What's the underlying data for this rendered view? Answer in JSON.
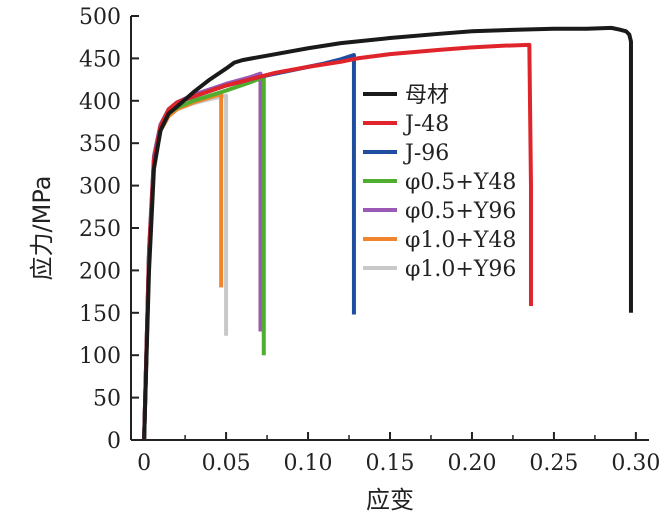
{
  "chart_data": {
    "type": "line",
    "xlabel": "应变",
    "ylabel": "应力/MPa",
    "xlim": [
      -0.008,
      0.308
    ],
    "ylim": [
      0,
      500
    ],
    "x_ticks": [
      "0",
      "0.05",
      "0.10",
      "0.15",
      "0.20",
      "0.25",
      "0.30"
    ],
    "y_ticks": [
      "0",
      "50",
      "100",
      "150",
      "200",
      "250",
      "300",
      "350",
      "400",
      "450",
      "500"
    ],
    "grid": false,
    "legend_position": "center-right",
    "series": [
      {
        "name": "母材",
        "color": "#1a1a1a",
        "points": [
          [
            0,
            0
          ],
          [
            0.003,
            200
          ],
          [
            0.006,
            320
          ],
          [
            0.01,
            365
          ],
          [
            0.015,
            385
          ],
          [
            0.02,
            393
          ],
          [
            0.03,
            410
          ],
          [
            0.04,
            425
          ],
          [
            0.05,
            438
          ],
          [
            0.055,
            445
          ],
          [
            0.06,
            448
          ],
          [
            0.08,
            455
          ],
          [
            0.1,
            462
          ],
          [
            0.12,
            468
          ],
          [
            0.15,
            474
          ],
          [
            0.18,
            479
          ],
          [
            0.2,
            482
          ],
          [
            0.23,
            484
          ],
          [
            0.25,
            485
          ],
          [
            0.27,
            485
          ],
          [
            0.285,
            486
          ],
          [
            0.29,
            484
          ],
          [
            0.294,
            482
          ],
          [
            0.296,
            478
          ],
          [
            0.297,
            470
          ],
          [
            0.297,
            300
          ],
          [
            0.297,
            150
          ]
        ]
      },
      {
        "name": "J-48",
        "color": "#e0242b",
        "points": [
          [
            0,
            0
          ],
          [
            0.003,
            220
          ],
          [
            0.006,
            330
          ],
          [
            0.01,
            370
          ],
          [
            0.015,
            390
          ],
          [
            0.02,
            398
          ],
          [
            0.03,
            405
          ],
          [
            0.05,
            418
          ],
          [
            0.07,
            428
          ],
          [
            0.08,
            433
          ],
          [
            0.1,
            440
          ],
          [
            0.12,
            446
          ],
          [
            0.13,
            450
          ],
          [
            0.15,
            455
          ],
          [
            0.18,
            460
          ],
          [
            0.2,
            463
          ],
          [
            0.22,
            465
          ],
          [
            0.235,
            466
          ],
          [
            0.236,
            300
          ],
          [
            0.236,
            158
          ]
        ]
      },
      {
        "name": "J-96",
        "color": "#1f4ea0",
        "points": [
          [
            0,
            0
          ],
          [
            0.003,
            220
          ],
          [
            0.006,
            330
          ],
          [
            0.01,
            370
          ],
          [
            0.015,
            390
          ],
          [
            0.02,
            398
          ],
          [
            0.03,
            405
          ],
          [
            0.05,
            418
          ],
          [
            0.07,
            428
          ],
          [
            0.09,
            436
          ],
          [
            0.11,
            444
          ],
          [
            0.12,
            449
          ],
          [
            0.128,
            454
          ],
          [
            0.128,
            300
          ],
          [
            0.128,
            148
          ]
        ]
      },
      {
        "name": "φ0.5+Y48",
        "color": "#4fae2e",
        "points": [
          [
            0,
            0
          ],
          [
            0.003,
            220
          ],
          [
            0.006,
            330
          ],
          [
            0.01,
            368
          ],
          [
            0.015,
            385
          ],
          [
            0.02,
            392
          ],
          [
            0.03,
            400
          ],
          [
            0.05,
            412
          ],
          [
            0.065,
            422
          ],
          [
            0.073,
            428
          ],
          [
            0.073,
            250
          ],
          [
            0.073,
            100
          ]
        ]
      },
      {
        "name": "φ0.5+Y96",
        "color": "#9b59b6",
        "points": [
          [
            0,
            0
          ],
          [
            0.003,
            225
          ],
          [
            0.006,
            335
          ],
          [
            0.01,
            372
          ],
          [
            0.015,
            390
          ],
          [
            0.02,
            398
          ],
          [
            0.03,
            407
          ],
          [
            0.05,
            420
          ],
          [
            0.065,
            428
          ],
          [
            0.071,
            432
          ],
          [
            0.071,
            250
          ],
          [
            0.071,
            128
          ]
        ]
      },
      {
        "name": "φ1.0+Y48",
        "color": "#f0852d",
        "points": [
          [
            0,
            0
          ],
          [
            0.003,
            215
          ],
          [
            0.006,
            325
          ],
          [
            0.01,
            365
          ],
          [
            0.015,
            382
          ],
          [
            0.02,
            390
          ],
          [
            0.03,
            398
          ],
          [
            0.04,
            404
          ],
          [
            0.047,
            408
          ],
          [
            0.047,
            300
          ],
          [
            0.047,
            180
          ]
        ]
      },
      {
        "name": "φ1.0+Y96",
        "color": "#c8c8c8",
        "points": [
          [
            0,
            0
          ],
          [
            0.003,
            215
          ],
          [
            0.006,
            325
          ],
          [
            0.01,
            365
          ],
          [
            0.015,
            382
          ],
          [
            0.02,
            390
          ],
          [
            0.03,
            397
          ],
          [
            0.04,
            402
          ],
          [
            0.05,
            406
          ],
          [
            0.05,
            250
          ],
          [
            0.05,
            123
          ]
        ]
      }
    ]
  }
}
